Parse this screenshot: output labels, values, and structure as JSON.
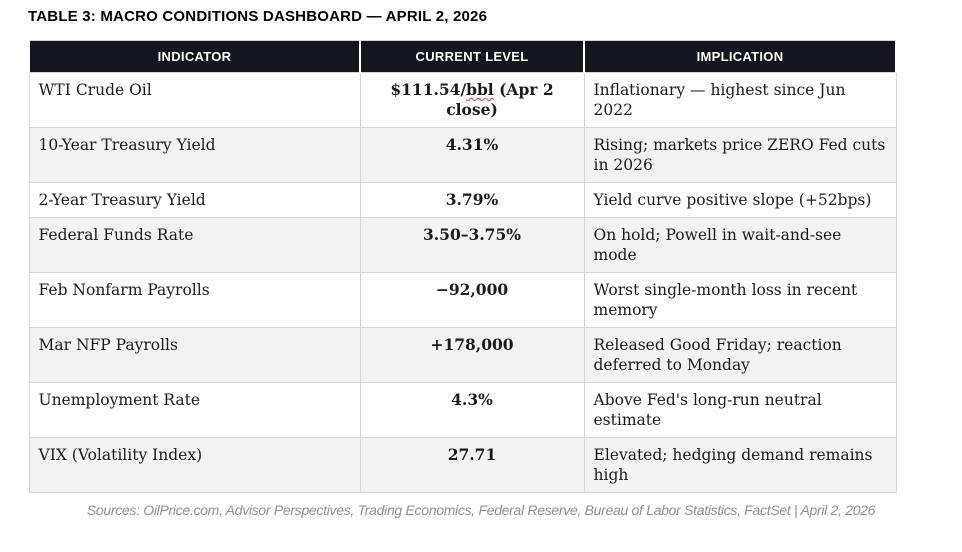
{
  "title": "TABLE 3: MACRO CONDITIONS DASHBOARD — APRIL 2, 2026",
  "table": {
    "columns": [
      "INDICATOR",
      "CURRENT LEVEL",
      "IMPLICATION"
    ],
    "rows": [
      {
        "indicator": "WTI Crude Oil",
        "level": "$111.54/bbl (Apr 2 close)",
        "level_parts": [
          {
            "text": "$111.54/"
          },
          {
            "text": "bbl",
            "squiggle": true
          },
          {
            "text": " (Apr 2 close)"
          }
        ],
        "implication": "Inflationary — highest since Jun 2022"
      },
      {
        "indicator": "10-Year Treasury Yield",
        "level": "4.31%",
        "level_parts": [
          {
            "text": "4.31%"
          }
        ],
        "implication": "Rising; markets price ZERO Fed cuts in 2026"
      },
      {
        "indicator": "2-Year Treasury Yield",
        "level": "3.79%",
        "level_parts": [
          {
            "text": "3.79%"
          }
        ],
        "implication": "Yield curve positive slope (+52bps)"
      },
      {
        "indicator": "Federal Funds Rate",
        "level": "3.50–3.75%",
        "level_parts": [
          {
            "text": "3.50–3.75%"
          }
        ],
        "implication": "On hold; Powell in wait-and-see mode"
      },
      {
        "indicator": "Feb Nonfarm Payrolls",
        "level": "−92,000",
        "level_parts": [
          {
            "text": "−92,000"
          }
        ],
        "implication": "Worst single-month loss in recent memory"
      },
      {
        "indicator": "Mar NFP Payrolls",
        "level": "+178,000",
        "level_parts": [
          {
            "text": "+178,000"
          }
        ],
        "implication": "Released Good Friday; reaction deferred to Monday"
      },
      {
        "indicator": "Unemployment Rate",
        "level": "4.3%",
        "level_parts": [
          {
            "text": "4.3%"
          }
        ],
        "implication": "Above Fed's long-run neutral estimate"
      },
      {
        "indicator": "VIX (Volatility Index)",
        "level": "27.71",
        "level_parts": [
          {
            "text": "27.71"
          }
        ],
        "implication": "Elevated; hedging demand remains high"
      }
    ]
  },
  "footer": "Sources: OilPrice.com, Advisor Perspectives, Trading Economics, Federal Reserve, Bureau of Labor Statistics, FactSet | April 2, 2026",
  "colors": {
    "header_bg": "#15151d",
    "header_text": "#ffffff",
    "alt_row": "#f2f2f2",
    "border": "#d6d6d6",
    "squiggle": "#e03a3a",
    "footer_text": "#8f8f8f"
  }
}
